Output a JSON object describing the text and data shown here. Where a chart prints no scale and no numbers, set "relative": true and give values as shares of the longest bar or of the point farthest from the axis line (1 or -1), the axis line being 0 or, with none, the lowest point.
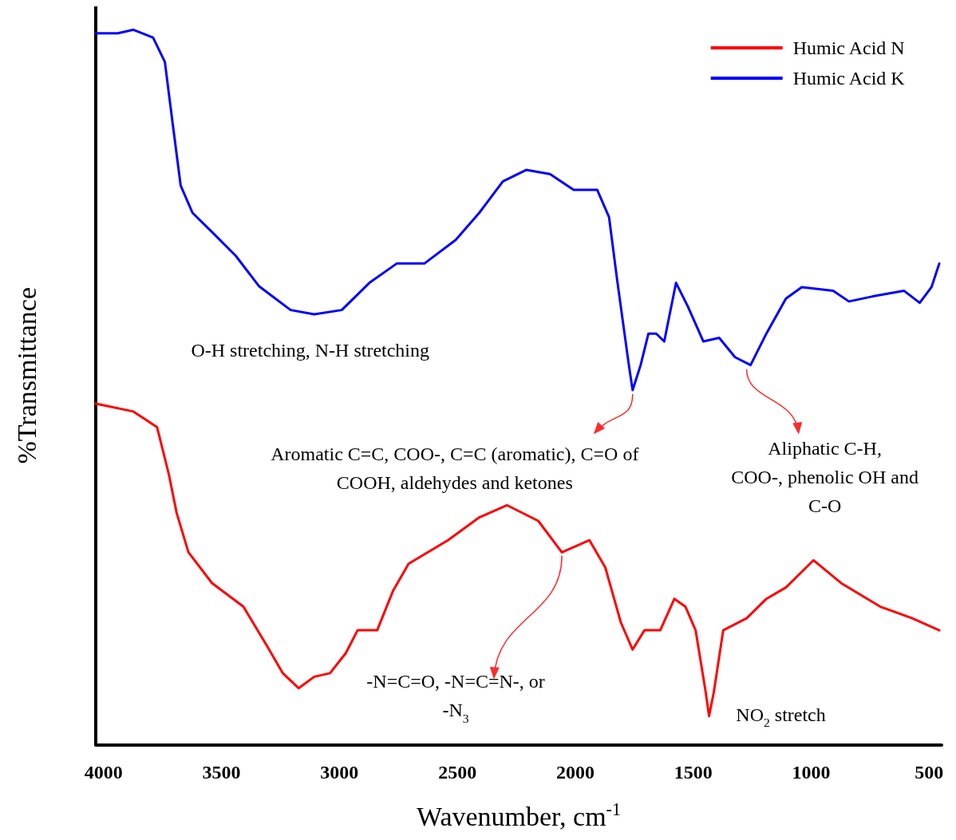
{
  "chart_data": {
    "type": "line",
    "relative": true,
    "xlabel": "Wavenumber, cm$^{-1}$",
    "ylabel": "%Transmittance",
    "xlim": [
      4033,
      447
    ],
    "xticks": [
      4000,
      3500,
      3000,
      2500,
      2000,
      1500,
      1000,
      500
    ],
    "grid": false,
    "legend": "top right",
    "marker": "none",
    "line_style": "solid",
    "series": [
      {
        "name": "Humic Acid N",
        "color": "#ff0000",
        "x": [
          4033,
          3873,
          3773,
          3723,
          3690,
          3640,
          3540,
          3407,
          3307,
          3240,
          3173,
          3107,
          3040,
          2973,
          2923,
          2840,
          2773,
          2707,
          2540,
          2407,
          2290,
          2157,
          2057,
          1940,
          1873,
          1807,
          1757,
          1707,
          1640,
          1580,
          1533,
          1490,
          1447,
          1433,
          1413,
          1373,
          1273,
          1190,
          1107,
          990,
          873,
          707,
          573,
          457
        ],
        "values": [
          0.477,
          0.466,
          0.444,
          0.378,
          0.324,
          0.269,
          0.226,
          0.193,
          0.138,
          0.1,
          0.079,
          0.095,
          0.1,
          0.128,
          0.16,
          0.16,
          0.215,
          0.253,
          0.286,
          0.318,
          0.335,
          0.313,
          0.269,
          0.286,
          0.248,
          0.171,
          0.133,
          0.16,
          0.16,
          0.204,
          0.193,
          0.16,
          0.073,
          0.04,
          0.073,
          0.16,
          0.177,
          0.204,
          0.22,
          0.258,
          0.226,
          0.193,
          0.177,
          0.16
        ]
      },
      {
        "name": "Humic Acid K",
        "color": "#0000ff",
        "x": [
          4033,
          3940,
          3873,
          3790,
          3740,
          3707,
          3673,
          3623,
          3540,
          3440,
          3340,
          3207,
          3107,
          2990,
          2873,
          2757,
          2640,
          2507,
          2407,
          2307,
          2207,
          2107,
          2007,
          1907,
          1857,
          1823,
          1773,
          1757,
          1723,
          1690,
          1657,
          1623,
          1573,
          1523,
          1457,
          1390,
          1323,
          1257,
          1190,
          1107,
          1040,
          907,
          840,
          740,
          607,
          540,
          490,
          457
        ],
        "values": [
          0.995,
          0.995,
          1.0,
          0.989,
          0.955,
          0.869,
          0.782,
          0.744,
          0.717,
          0.684,
          0.641,
          0.608,
          0.602,
          0.608,
          0.646,
          0.673,
          0.673,
          0.706,
          0.744,
          0.788,
          0.804,
          0.798,
          0.776,
          0.776,
          0.738,
          0.651,
          0.531,
          0.496,
          0.531,
          0.575,
          0.575,
          0.564,
          0.646,
          0.613,
          0.564,
          0.569,
          0.542,
          0.531,
          0.575,
          0.624,
          0.64,
          0.635,
          0.62,
          0.627,
          0.635,
          0.618,
          0.64,
          0.673
        ]
      }
    ],
    "annotations": [
      {
        "text": "O-H stretching, N-H stretching",
        "x": 3107,
        "y": 0.602
      },
      {
        "text": "Aromatic C=C, COO-, C=C (aromatic), C=O of\nCOOH, aldehydes and ketones",
        "x": 1757,
        "y": 0.496
      },
      {
        "text": "Aliphatic C-H,\nCOO-, phenolic OH and\nC-O",
        "x": 1257,
        "y": 0.531
      },
      {
        "text": "-N=C=O, -N=C=N-, or\n-N$_{3}$",
        "x": 2057,
        "y": 0.269
      },
      {
        "text": "NO$_{2}$ stretch",
        "x": 1433,
        "y": 0.04
      }
    ]
  }
}
